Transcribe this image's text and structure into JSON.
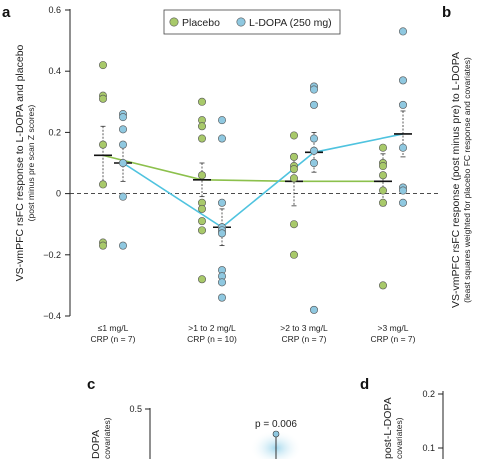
{
  "panel_labels": {
    "a": "a",
    "b": "b",
    "c": "c",
    "d": "d"
  },
  "chart_data": [
    {
      "type": "scatter",
      "panel": "a",
      "ylabel": "VS-vmPFC rsFC response to L-DOPA and placebo",
      "ylabel_sub": "(post minus pre scan Z scores)",
      "ylim": [
        -0.4,
        0.6
      ],
      "yticks": [
        -0.4,
        -0.2,
        0.0,
        0.2,
        0.4,
        0.6
      ],
      "ytick_labels": [
        "−0.4",
        "−0.2",
        "0",
        "0.2",
        "0.4",
        "0.6"
      ],
      "categories": [
        [
          "≤1 mg/L",
          "CRP (n = 7)"
        ],
        [
          ">1 to 2 mg/L",
          "CRP (n = 10)"
        ],
        [
          ">2 to 3 mg/L",
          "CRP (n = 7)"
        ],
        [
          ">3 mg/L",
          "CRP (n = 7)"
        ]
      ],
      "reference_line_y": 0,
      "legend": {
        "position": "top-center"
      },
      "series": [
        {
          "name": "Placebo",
          "color": "#a8c96a",
          "line_color": "#8cc04c",
          "points": [
            [
              0.42,
              0.32,
              0.31,
              0.16,
              0.03,
              -0.16,
              -0.17
            ],
            [
              0.3,
              0.24,
              0.22,
              0.18,
              0.06,
              -0.03,
              -0.05,
              -0.09,
              -0.12,
              -0.28
            ],
            [
              0.19,
              0.12,
              0.09,
              0.08,
              0.05,
              -0.1,
              -0.2
            ],
            [
              0.15,
              0.1,
              0.09,
              0.06,
              0.01,
              -0.03,
              -0.3
            ]
          ],
          "means": [
            0.125,
            0.045,
            0.04,
            0.04
          ],
          "err_upper": [
            0.22,
            0.1,
            0.13,
            0.13
          ],
          "err_lower": [
            0.04,
            -0.01,
            -0.04,
            -0.04
          ]
        },
        {
          "name": "L-DOPA (250 mg)",
          "color": "#8fc8e0",
          "line_color": "#4fc3df",
          "points": [
            [
              0.26,
              0.25,
              0.21,
              0.16,
              0.1,
              -0.01,
              -0.17
            ],
            [
              0.24,
              0.18,
              -0.03,
              -0.11,
              -0.12,
              -0.13,
              -0.25,
              -0.27,
              -0.29,
              -0.34
            ],
            [
              0.35,
              0.34,
              0.29,
              0.18,
              0.14,
              0.1,
              -0.38
            ],
            [
              0.53,
              0.37,
              0.29,
              0.15,
              0.02,
              0.01,
              -0.03
            ]
          ],
          "means": [
            0.1,
            -0.11,
            0.135,
            0.195
          ],
          "err_upper": [
            0.16,
            -0.05,
            0.2,
            0.27
          ],
          "err_lower": [
            0.04,
            -0.17,
            0.07,
            0.12
          ]
        }
      ]
    },
    {
      "type": "scatter",
      "panel": "b",
      "ylabel": "VS-vmPFC rsFC response (post minus pre) to L-DOPA",
      "ylabel_sub": "(least squares weighted for placebo FC response and covariates)"
    },
    {
      "type": "scatter",
      "panel": "c",
      "ylabel_fragment": "DOPA",
      "ylabel_sub_fragment": "covariates)",
      "ytick_visible": "0.5",
      "annotation": "p = 0.006",
      "point": {
        "color": "#8fc8e0"
      }
    },
    {
      "type": "scatter",
      "panel": "d",
      "ylabel_fragment": "post-L-DOPA",
      "ylabel_sub_fragment": "covariates)",
      "yticks_visible": [
        "0.2",
        "0.1"
      ]
    }
  ]
}
